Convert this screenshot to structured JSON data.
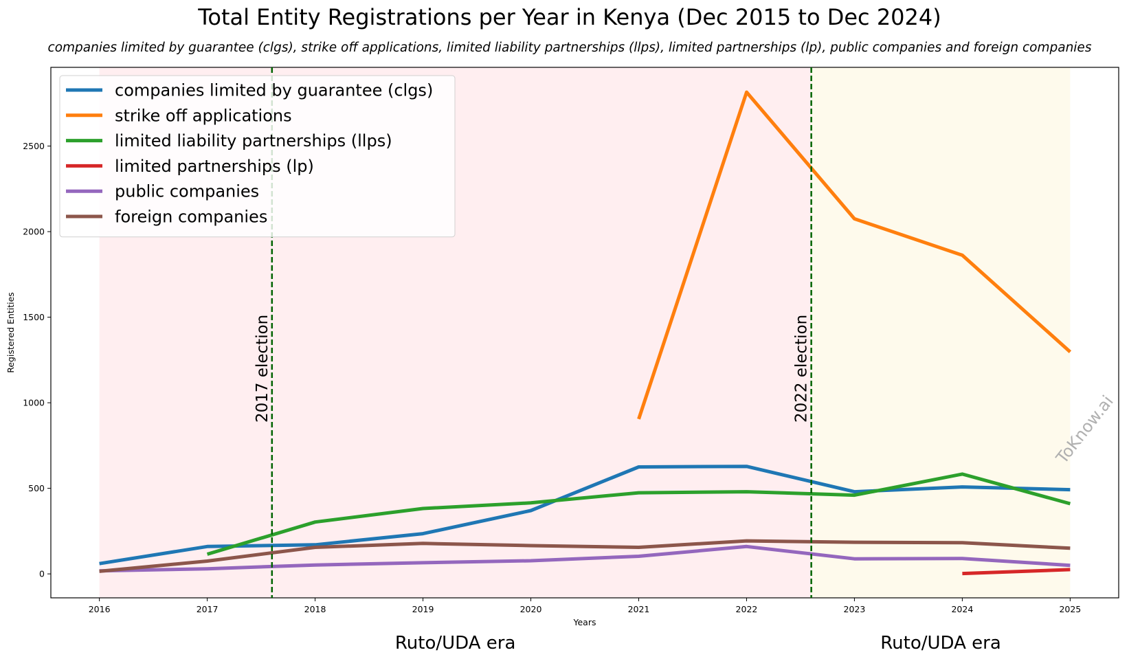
{
  "chart_data": {
    "type": "line",
    "title": "Total Entity Registrations per Year in Kenya (Dec 2015 to Dec 2024)",
    "subtitle": "companies limited by guarantee (clgs), strike off applications, limited liability partnerships (llps), limited partnerships (lp), public companies and foreign companies",
    "xlabel": "Years",
    "ylabel": "Registered Entities",
    "x_ticks": [
      2016,
      2017,
      2018,
      2019,
      2020,
      2021,
      2022,
      2023,
      2024,
      2025
    ],
    "y_ticks": [
      0,
      500,
      1000,
      1500,
      2000,
      2500
    ],
    "xlim": [
      2015.55,
      2025.45
    ],
    "ylim": [
      -140,
      2960
    ],
    "grid": false,
    "legend_position": "upper-left",
    "series": [
      {
        "name": "companies limited by guarantee (clgs)",
        "color": "#1f77b4",
        "points": [
          [
            2016,
            60
          ],
          [
            2017,
            160
          ],
          [
            2018,
            170
          ],
          [
            2019,
            235
          ],
          [
            2020,
            370
          ],
          [
            2021,
            625
          ],
          [
            2022,
            628
          ],
          [
            2023,
            480
          ],
          [
            2024,
            508
          ],
          [
            2025,
            492
          ]
        ]
      },
      {
        "name": "strike off applications",
        "color": "#ff7f0e",
        "points": [
          [
            2021,
            905
          ],
          [
            2022,
            2815
          ],
          [
            2023,
            2075
          ],
          [
            2024,
            1862
          ],
          [
            2025,
            1297
          ]
        ]
      },
      {
        "name": "limited liability partnerships (llps)",
        "color": "#2ca02c",
        "points": [
          [
            2017,
            115
          ],
          [
            2018,
            303
          ],
          [
            2019,
            382
          ],
          [
            2020,
            415
          ],
          [
            2021,
            474
          ],
          [
            2022,
            480
          ],
          [
            2023,
            460
          ],
          [
            2024,
            583
          ],
          [
            2025,
            410
          ]
        ]
      },
      {
        "name": "limited partnerships (lp)",
        "color": "#d62728",
        "points": [
          [
            2024,
            2
          ],
          [
            2025,
            25
          ]
        ]
      },
      {
        "name": "public companies",
        "color": "#9467bd",
        "points": [
          [
            2016,
            18
          ],
          [
            2017,
            30
          ],
          [
            2018,
            52
          ],
          [
            2019,
            65
          ],
          [
            2020,
            77
          ],
          [
            2021,
            103
          ],
          [
            2022,
            160
          ],
          [
            2023,
            88
          ],
          [
            2024,
            90
          ],
          [
            2025,
            50
          ]
        ]
      },
      {
        "name": "foreign companies",
        "color": "#8c564b",
        "points": [
          [
            2016,
            15
          ],
          [
            2017,
            75
          ],
          [
            2018,
            155
          ],
          [
            2019,
            178
          ],
          [
            2020,
            165
          ],
          [
            2021,
            155
          ],
          [
            2022,
            193
          ],
          [
            2023,
            185
          ],
          [
            2024,
            182
          ],
          [
            2025,
            150
          ]
        ]
      }
    ],
    "shaded_regions": [
      {
        "x_start": 2016,
        "x_end": 2022.6,
        "color": "#ffeef0"
      },
      {
        "x_start": 2022.6,
        "x_end": 2025,
        "color": "#fefaec"
      }
    ],
    "era_labels": [
      {
        "text": "Ruto/UDA era",
        "x": 2019.3
      },
      {
        "text": "Ruto/UDA era",
        "x": 2023.8
      }
    ],
    "vertical_lines": [
      {
        "x": 2017.6,
        "label": "2017 election",
        "color": "#006400"
      },
      {
        "x": 2022.6,
        "label": "2022 election",
        "color": "#006400"
      }
    ],
    "watermark": "ToKnow.ai"
  }
}
